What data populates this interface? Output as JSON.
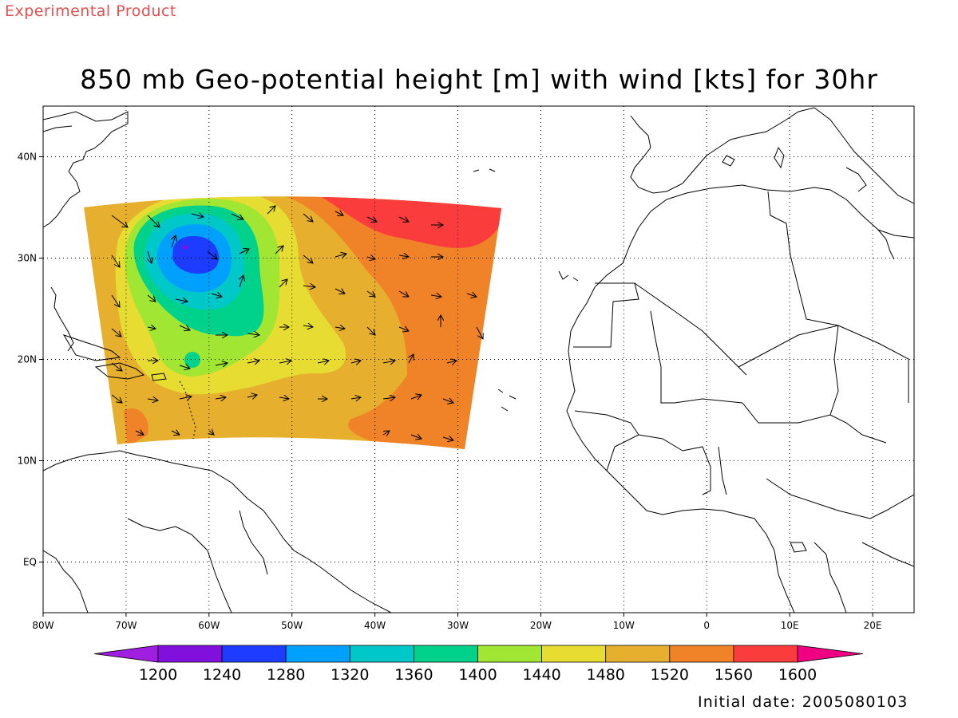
{
  "header": {
    "product_label": "Experimental Product",
    "title": "850 mb Geo-potential height [m] with wind [kts] for 30hr"
  },
  "footer": {
    "initial_date": "Initial date: 2005080103"
  },
  "map": {
    "lon_range": [
      -80,
      25
    ],
    "lat_range": [
      -5,
      45
    ],
    "lon_ticks": [
      {
        "value": -80,
        "label": "80W"
      },
      {
        "value": -70,
        "label": "70W"
      },
      {
        "value": -60,
        "label": "60W"
      },
      {
        "value": -50,
        "label": "50W"
      },
      {
        "value": -40,
        "label": "40W"
      },
      {
        "value": -30,
        "label": "30W"
      },
      {
        "value": -20,
        "label": "20W"
      },
      {
        "value": -10,
        "label": "10W"
      },
      {
        "value": 0,
        "label": "0"
      },
      {
        "value": 10,
        "label": "10E"
      },
      {
        "value": 20,
        "label": "20E"
      }
    ],
    "lat_ticks": [
      {
        "value": 40,
        "label": "40N"
      },
      {
        "value": 30,
        "label": "30N"
      },
      {
        "value": 20,
        "label": "20N"
      },
      {
        "value": 10,
        "label": "10N"
      },
      {
        "value": 0,
        "label": "EQ"
      }
    ],
    "grid": "dotted",
    "colorbar": {
      "levels": [
        "1200",
        "1240",
        "1280",
        "1320",
        "1360",
        "1400",
        "1440",
        "1480",
        "1520",
        "1560",
        "1600"
      ],
      "colors": [
        "#a01ee0",
        "#8210dc",
        "#1e3cff",
        "#00a0ff",
        "#00c8c8",
        "#00d28c",
        "#a0e632",
        "#e6dc32",
        "#e6af2d",
        "#f08228",
        "#fa3c3c",
        "#f00082"
      ]
    },
    "domain_colors": {
      "background": "#e6af2d",
      "orange": "#f08228",
      "red": "#fa3c3c",
      "yellow": "#e6dc32",
      "lightgreen": "#a0e632",
      "green": "#00d28c",
      "teal": "#00c8c8",
      "cyan": "#00a0ff",
      "blue": "#1e3cff",
      "purple": "#8210dc"
    }
  }
}
